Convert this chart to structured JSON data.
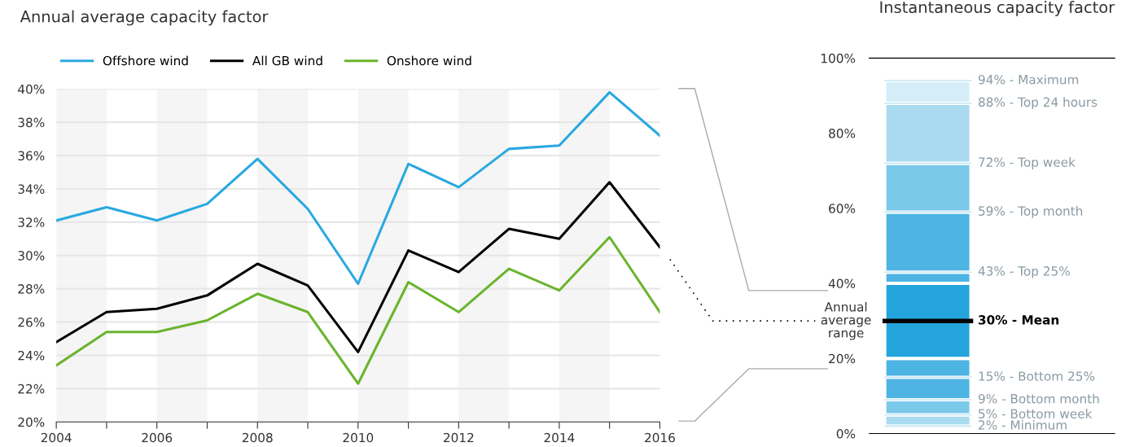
{
  "chart_data": [
    {
      "type": "line",
      "title": "Annual average capacity factor",
      "x": [
        2004,
        2005,
        2006,
        2007,
        2008,
        2009,
        2010,
        2011,
        2012,
        2013,
        2014,
        2015,
        2016
      ],
      "series": [
        {
          "name": "Offshore wind",
          "color": "#29a8e0",
          "values": [
            32.1,
            32.9,
            32.1,
            33.1,
            35.8,
            32.8,
            28.3,
            35.5,
            34.1,
            36.4,
            36.6,
            39.8,
            37.2
          ]
        },
        {
          "name": "All GB wind",
          "color": "#000000",
          "values": [
            24.8,
            26.6,
            26.8,
            27.6,
            29.5,
            28.2,
            24.2,
            30.3,
            29.0,
            31.6,
            31.0,
            34.4,
            30.5
          ]
        },
        {
          "name": "Onshore wind",
          "color": "#6ab42d",
          "values": [
            23.4,
            25.4,
            25.4,
            26.1,
            27.7,
            26.6,
            22.3,
            28.4,
            26.6,
            29.2,
            27.9,
            31.1,
            26.6
          ]
        }
      ],
      "xlim": [
        2004,
        2016
      ],
      "xticks": [
        2004,
        {
          "value": 2005,
          "label": null
        },
        2006,
        {
          "value": 2007,
          "label": null
        },
        2008,
        {
          "value": 2009,
          "label": null
        },
        2010,
        {
          "value": 2011,
          "label": null
        },
        2012,
        {
          "value": 2013,
          "label": null
        },
        2014,
        {
          "value": 2015,
          "label": null
        },
        2016
      ],
      "ylim": [
        20,
        40
      ],
      "yticks": [
        {
          "value": 20,
          "label": "20%"
        },
        {
          "value": 22,
          "label": "22%"
        },
        {
          "value": 24,
          "label": "24%"
        },
        {
          "value": 26,
          "label": "26%"
        },
        {
          "value": 28,
          "label": "28%"
        },
        {
          "value": 30,
          "label": "30%"
        },
        {
          "value": 32,
          "label": "32%"
        },
        {
          "value": 34,
          "label": "34%"
        },
        {
          "value": 36,
          "label": "36%"
        },
        {
          "value": 38,
          "label": "38%"
        },
        {
          "value": 40,
          "label": "40%"
        }
      ],
      "bands": [
        {
          "axis": "x",
          "from": 2004,
          "to": 2005,
          "color": "#f5f5f5"
        },
        {
          "axis": "x",
          "from": 2006,
          "to": 2007,
          "color": "#f5f5f5"
        },
        {
          "axis": "x",
          "from": 2008,
          "to": 2009,
          "color": "#f5f5f5"
        },
        {
          "axis": "x",
          "from": 2010,
          "to": 2011,
          "color": "#f5f5f5"
        },
        {
          "axis": "x",
          "from": 2012,
          "to": 2013,
          "color": "#f5f5f5"
        },
        {
          "axis": "x",
          "from": 2014,
          "to": 2015,
          "color": "#f5f5f5"
        }
      ],
      "grid": "y",
      "legend": "top left",
      "line_style": "solid"
    },
    {
      "type": "bar",
      "title": "Instantaneous capacity factor",
      "categories": [
        null
      ],
      "series": [
        {
          "color": "#a9daf0",
          "base": [
            2
          ],
          "values": [
            3
          ]
        },
        {
          "color": "#7ac8ea",
          "base": [
            5
          ],
          "values": [
            4
          ]
        },
        {
          "color": "#4db4e3",
          "base": [
            9
          ],
          "values": [
            6
          ]
        },
        {
          "color": "#4db4e3",
          "base": [
            15
          ],
          "values": [
            5
          ]
        },
        {
          "color": "#24a4dc",
          "base": [
            20
          ],
          "values": [
            20
          ]
        },
        {
          "color": "#4db4e3",
          "base": [
            40
          ],
          "values": [
            3
          ]
        },
        {
          "color": "#4db4e3",
          "base": [
            43
          ],
          "values": [
            16
          ]
        },
        {
          "color": "#7ac8ea",
          "base": [
            59
          ],
          "values": [
            13
          ]
        },
        {
          "color": "#a9daf0",
          "base": [
            72
          ],
          "values": [
            16
          ]
        },
        {
          "color": "#d5edf8",
          "base": [
            88
          ],
          "values": [
            6
          ]
        }
      ],
      "ylim": [
        0,
        100
      ],
      "yticks": [
        {
          "value": 0,
          "label": "0%"
        },
        {
          "value": 20,
          "label": "20%"
        },
        {
          "value": 40,
          "label": "40%"
        },
        {
          "value": 60,
          "label": "60%"
        },
        {
          "value": 80,
          "label": "80%"
        },
        {
          "value": 100,
          "label": "100%"
        }
      ],
      "ref_lines": [
        {
          "axis": "y",
          "value": 94,
          "label": "94% - Maximum",
          "color": "#c6e6f5"
        },
        {
          "axis": "y",
          "value": 88,
          "label": "88% - Top 24 hours",
          "color": "#c6e6f5"
        },
        {
          "axis": "y",
          "value": 72,
          "label": "72% - Top week",
          "color": "#c6e6f5"
        },
        {
          "axis": "y",
          "value": 59,
          "label": "59% - Top month",
          "color": "#c6e6f5"
        },
        {
          "axis": "y",
          "value": 43,
          "label": "43% - Top 25%",
          "color": "#c6e6f5"
        },
        {
          "axis": "y",
          "value": 30,
          "label": "30% - Mean",
          "color": "#000000"
        },
        {
          "axis": "y",
          "value": 15,
          "label": "15% - Bottom 25%",
          "color": "#c6e6f5"
        },
        {
          "axis": "y",
          "value": 9,
          "label": "9% - Bottom month",
          "color": "#c6e6f5"
        },
        {
          "axis": "y",
          "value": 5,
          "label": "5% - Bottom week",
          "color": "#c6e6f5"
        },
        {
          "axis": "y",
          "value": 2,
          "label": "2% - Minimum",
          "color": "#c6e6f5"
        }
      ],
      "annotations": [
        "Annual\naverage\nrange"
      ]
    }
  ]
}
